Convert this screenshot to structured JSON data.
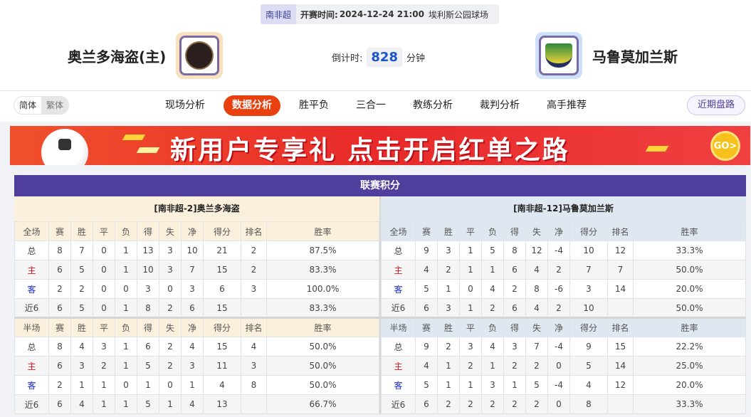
{
  "match": {
    "league": "南非超",
    "kickoff_label": "开赛时间:",
    "kickoff": "2024-12-24 21:00",
    "venue": "埃利斯公园球场"
  },
  "home": {
    "name": "奥兰多海盗(主)",
    "logo_color": "#f9e1bd"
  },
  "away": {
    "name": "马鲁莫加兰斯",
    "logo_color": "#cfe0fa"
  },
  "countdown": {
    "label": "倒计时:",
    "value": "828",
    "unit": "分钟"
  },
  "lang": {
    "simplified": "简体",
    "traditional": "繁体"
  },
  "tabs": [
    {
      "label": "现场分析"
    },
    {
      "label": "数据分析",
      "active": true
    },
    {
      "label": "胜平负"
    },
    {
      "label": "三合一"
    },
    {
      "label": "教练分析"
    },
    {
      "label": "裁判分析"
    },
    {
      "label": "高手推荐"
    }
  ],
  "recent_button": "近期盘路",
  "banner": {
    "text": "新用户专享礼  点击开启红单之路",
    "go": "GO>"
  },
  "standings": {
    "title": "联赛积分",
    "cols_full": [
      "全场",
      "赛",
      "胜",
      "平",
      "负",
      "得",
      "失",
      "净",
      "得分",
      "排名",
      "胜率"
    ],
    "cols_half": [
      "半场",
      "赛",
      "胜",
      "平",
      "负",
      "得",
      "失",
      "净",
      "得分",
      "排名",
      "胜率"
    ],
    "teams": [
      {
        "header": "[南非超-2]奥兰多海盗",
        "full": [
          [
            "总",
            "8",
            "7",
            "0",
            "1",
            "13",
            "3",
            "10",
            "21",
            "2",
            "87.5%"
          ],
          [
            "主",
            "6",
            "5",
            "0",
            "1",
            "10",
            "3",
            "7",
            "15",
            "2",
            "83.3%"
          ],
          [
            "客",
            "2",
            "2",
            "0",
            "0",
            "3",
            "0",
            "3",
            "6",
            "3",
            "100.0%"
          ],
          [
            "近6",
            "6",
            "5",
            "0",
            "1",
            "8",
            "2",
            "6",
            "15",
            "",
            "83.3%"
          ]
        ],
        "half": [
          [
            "总",
            "8",
            "4",
            "3",
            "1",
            "6",
            "2",
            "4",
            "15",
            "4",
            "50.0%"
          ],
          [
            "主",
            "6",
            "3",
            "2",
            "1",
            "5",
            "2",
            "3",
            "11",
            "3",
            "50.0%"
          ],
          [
            "客",
            "2",
            "1",
            "1",
            "0",
            "1",
            "0",
            "1",
            "4",
            "8",
            "50.0%"
          ],
          [
            "近6",
            "6",
            "4",
            "1",
            "1",
            "5",
            "1",
            "4",
            "13",
            "",
            "66.7%"
          ]
        ]
      },
      {
        "header": "[南非超-12]马鲁莫加兰斯",
        "full": [
          [
            "总",
            "9",
            "3",
            "1",
            "5",
            "8",
            "12",
            "-4",
            "10",
            "12",
            "33.3%"
          ],
          [
            "主",
            "4",
            "2",
            "1",
            "1",
            "6",
            "4",
            "2",
            "7",
            "7",
            "50.0%"
          ],
          [
            "客",
            "5",
            "1",
            "0",
            "4",
            "2",
            "8",
            "-6",
            "3",
            "14",
            "20.0%"
          ],
          [
            "近6",
            "6",
            "3",
            "1",
            "2",
            "6",
            "4",
            "2",
            "10",
            "",
            "50.0%"
          ]
        ],
        "half": [
          [
            "总",
            "9",
            "2",
            "3",
            "4",
            "3",
            "7",
            "-4",
            "9",
            "15",
            "22.2%"
          ],
          [
            "主",
            "4",
            "1",
            "2",
            "1",
            "2",
            "2",
            "0",
            "5",
            "14",
            "25.0%"
          ],
          [
            "客",
            "5",
            "1",
            "1",
            "3",
            "1",
            "5",
            "-4",
            "4",
            "12",
            "20.0%"
          ],
          [
            "近6",
            "6",
            "2",
            "2",
            "2",
            "2",
            "2",
            "0",
            "8",
            "",
            "33.3%"
          ]
        ]
      }
    ]
  }
}
